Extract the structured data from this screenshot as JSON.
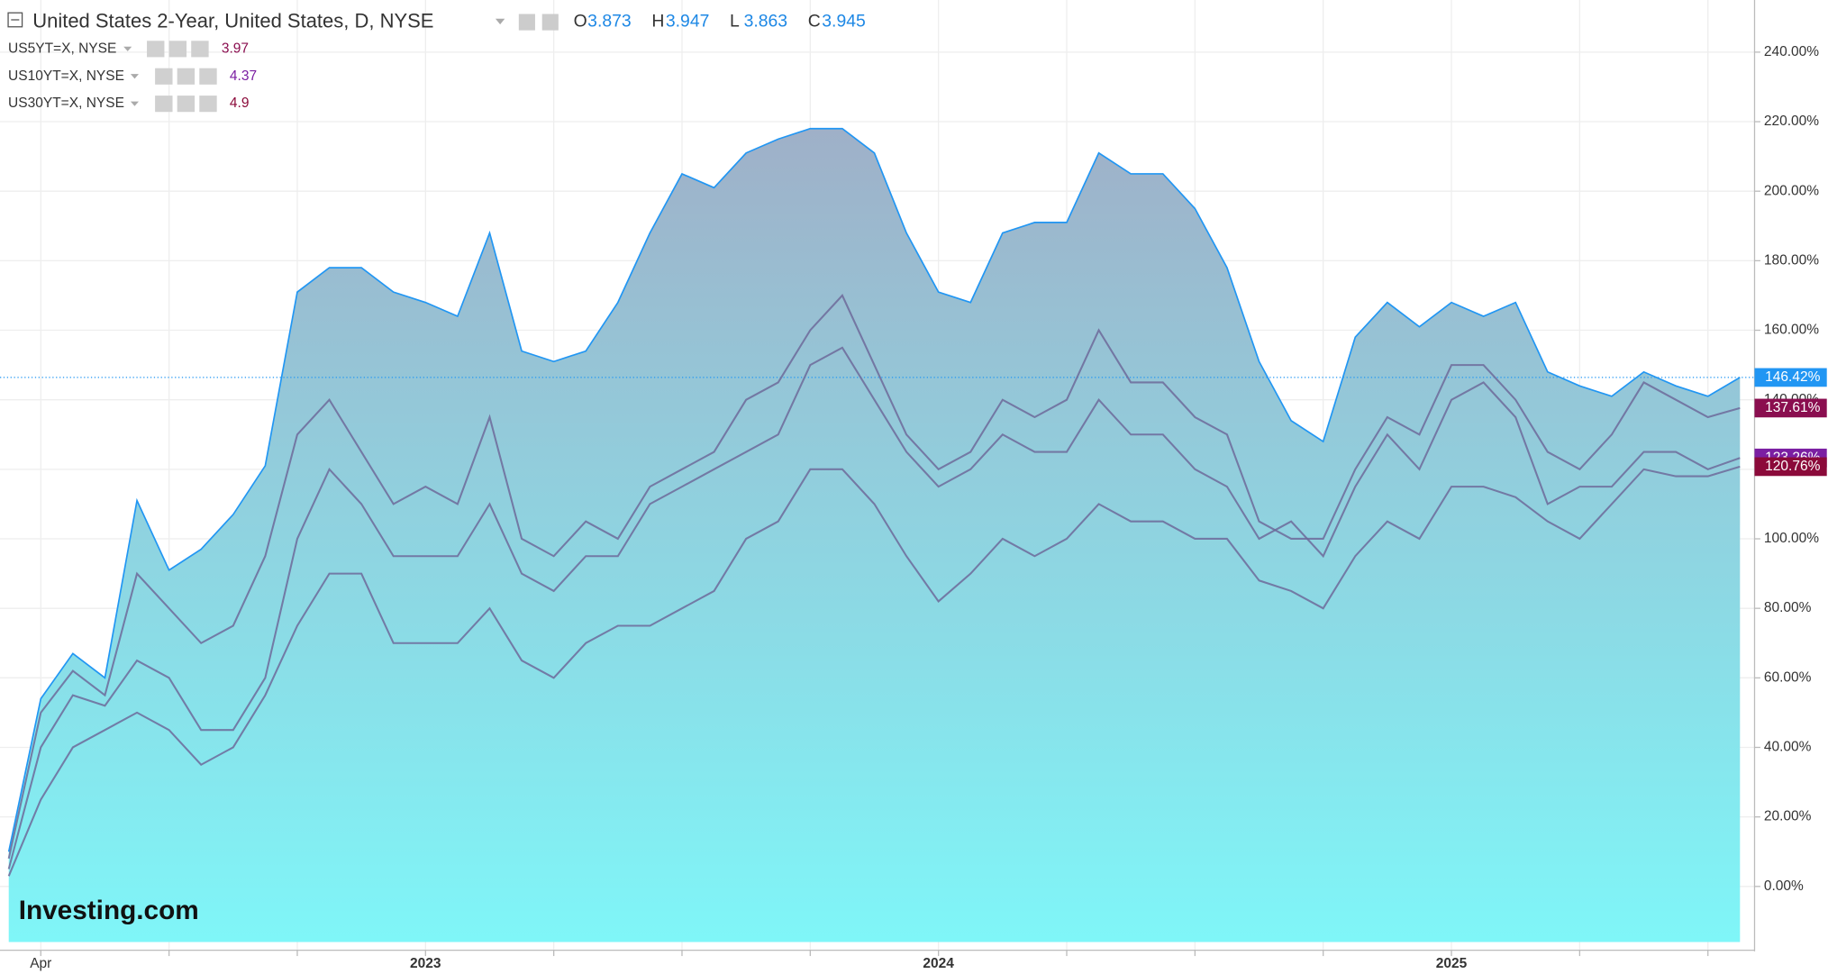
{
  "chart_data": {
    "type": "area",
    "title": "United States 2-Year, United States, D, NYSE",
    "ohlc": [
      {
        "label": "O",
        "value": 3.873
      },
      {
        "label": "H",
        "value": 3.947
      },
      {
        "label": "L",
        "value": 3.863
      },
      {
        "label": "C",
        "value": 3.945
      }
    ],
    "watermark": "Investing.com",
    "categories": [
      null,
      "Apr",
      null,
      null,
      null,
      null,
      null,
      null,
      null,
      null,
      null,
      null,
      null,
      "2023",
      null,
      null,
      null,
      null,
      null,
      null,
      null,
      null,
      null,
      null,
      null,
      null,
      null,
      null,
      null,
      "2024",
      null,
      null,
      null,
      null,
      null,
      null,
      null,
      null,
      null,
      null,
      null,
      null,
      null,
      null,
      null,
      "2025",
      null,
      null,
      null,
      null,
      null,
      null,
      null,
      null,
      null
    ],
    "ylim": [
      -16,
      255
    ],
    "yticks": [
      {
        "value": 0,
        "label": "0.00%"
      },
      {
        "value": 20,
        "label": "20.00%"
      },
      {
        "value": 40,
        "label": "40.00%"
      },
      {
        "value": 60,
        "label": "60.00%"
      },
      {
        "value": 80,
        "label": "80.00%"
      },
      {
        "value": 100,
        "label": "100.00%"
      },
      {
        "value": 120,
        "label": "120.00%"
      },
      {
        "value": 140,
        "label": "140.00%"
      },
      {
        "value": 160,
        "label": "160.00%"
      },
      {
        "value": 180,
        "label": "180.00%"
      },
      {
        "value": 200,
        "label": "200.00%"
      },
      {
        "value": 220,
        "label": "220.00%"
      },
      {
        "value": 240,
        "label": "240.00%"
      }
    ],
    "grid": true,
    "series": [
      {
        "color": "#2196f3",
        "end_label": "146.42%",
        "values": [
          10,
          54,
          67,
          60,
          111,
          91,
          97,
          107,
          121,
          171,
          178,
          178,
          171,
          168,
          164,
          188,
          154,
          151,
          154,
          168,
          188,
          205,
          201,
          211,
          215,
          218,
          218,
          211,
          188,
          171,
          168,
          188,
          191,
          191,
          211,
          205,
          205,
          195,
          178,
          151,
          134,
          128,
          158,
          168,
          161,
          168,
          164,
          168,
          148,
          144,
          141,
          148,
          144,
          141,
          146.42
        ]
      },
      {
        "name": "US5YT=X, NYSE",
        "last": 3.97,
        "color": "#8a0e4f",
        "end_label": "137.61%",
        "values": [
          8,
          50,
          62,
          55,
          90,
          80,
          70,
          75,
          95,
          130,
          140,
          125,
          110,
          115,
          110,
          135,
          100,
          95,
          105,
          100,
          115,
          120,
          125,
          140,
          145,
          160,
          170,
          150,
          130,
          120,
          125,
          140,
          135,
          140,
          160,
          145,
          145,
          135,
          130,
          105,
          100,
          100,
          120,
          135,
          130,
          150,
          150,
          140,
          125,
          120,
          130,
          145,
          140,
          135,
          137.61
        ]
      },
      {
        "name": "US10YT=X, NYSE",
        "last": 4.37,
        "color": "#7b1fa2",
        "end_label": "123.26%",
        "values": [
          5,
          40,
          55,
          52,
          65,
          60,
          45,
          45,
          60,
          100,
          120,
          110,
          95,
          95,
          95,
          110,
          90,
          85,
          95,
          95,
          110,
          115,
          120,
          125,
          130,
          150,
          155,
          140,
          125,
          115,
          120,
          130,
          125,
          125,
          140,
          130,
          130,
          120,
          115,
          100,
          105,
          95,
          115,
          130,
          120,
          140,
          145,
          135,
          110,
          115,
          115,
          125,
          125,
          120,
          123.26
        ]
      },
      {
        "name": "US30YT=X, NYSE",
        "last": 4.9,
        "color": "#8b0a3a",
        "end_label": "120.76%",
        "values": [
          3,
          25,
          40,
          45,
          50,
          45,
          35,
          40,
          55,
          75,
          90,
          90,
          70,
          70,
          70,
          80,
          65,
          60,
          70,
          75,
          75,
          80,
          85,
          100,
          105,
          120,
          120,
          110,
          95,
          82,
          90,
          100,
          95,
          100,
          110,
          105,
          105,
          100,
          100,
          88,
          85,
          80,
          95,
          105,
          100,
          115,
          115,
          112,
          105,
          100,
          110,
          120,
          118,
          118,
          120.76
        ]
      }
    ]
  }
}
